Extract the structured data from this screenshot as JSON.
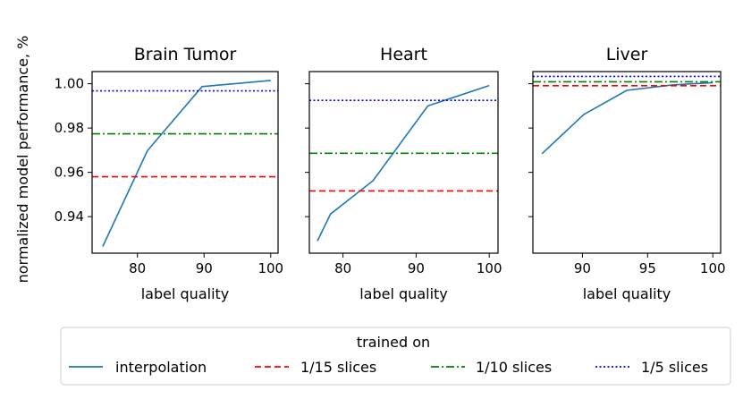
{
  "chart_data": [
    {
      "type": "line",
      "title": "Brain Tumor",
      "xlabel": "label quality",
      "ylabel": "normalized model performance, %",
      "xlim": [
        73.2,
        101.1
      ],
      "ylim": [
        0.9235,
        1.0055
      ],
      "xticks": [
        80,
        90,
        100
      ],
      "yticks": [
        0.94,
        0.96,
        0.98,
        1.0
      ],
      "ytick_labels": [
        "0.94",
        "0.96",
        "0.98",
        "1.00"
      ],
      "series": [
        {
          "name": "interpolation",
          "style": "solid",
          "color": "#1f77b4",
          "x": [
            74.8,
            81.5,
            89.7,
            100
          ],
          "y": [
            0.9265,
            0.9698,
            0.9987,
            1.0015
          ]
        },
        {
          "name": "1/15 slices",
          "style": "dashed",
          "color": "#ff0000",
          "value": 0.958
        },
        {
          "name": "1/10 slices",
          "style": "dashdot",
          "color": "#008000",
          "value": 0.9774
        },
        {
          "name": "1/5 slices",
          "style": "dotted",
          "color": "#0000ff",
          "value": 0.9968
        }
      ]
    },
    {
      "type": "line",
      "title": "Heart",
      "xlabel": "label quality",
      "xlim": [
        75.4,
        101.2
      ],
      "ylim": [
        0.9235,
        1.0055
      ],
      "xticks": [
        80,
        90,
        100
      ],
      "series": [
        {
          "name": "interpolation",
          "style": "solid",
          "color": "#1f77b4",
          "x": [
            76.5,
            78.3,
            84.1,
            91.6,
            100
          ],
          "y": [
            0.929,
            0.9412,
            0.9562,
            0.99,
            0.9992
          ]
        },
        {
          "name": "1/15 slices",
          "style": "dashed",
          "color": "#ff0000",
          "value": 0.9516
        },
        {
          "name": "1/10 slices",
          "style": "dashdot",
          "color": "#008000",
          "value": 0.9686
        },
        {
          "name": "1/5 slices",
          "style": "dotted",
          "color": "#0000ff",
          "value": 0.9925
        }
      ]
    },
    {
      "type": "line",
      "title": "Liver",
      "xlabel": "label quality",
      "xlim": [
        86.2,
        100.6
      ],
      "ylim": [
        0.9235,
        1.0055
      ],
      "xticks": [
        90,
        95,
        100
      ],
      "series": [
        {
          "name": "interpolation",
          "style": "solid",
          "color": "#1f77b4",
          "x": [
            86.9,
            90.1,
            93.4,
            96.9,
            100
          ],
          "y": [
            0.9684,
            0.9861,
            0.997,
            0.9995,
            1.0005
          ]
        },
        {
          "name": "1/15 slices",
          "style": "dashed",
          "color": "#ff0000",
          "value": 0.9991
        },
        {
          "name": "1/10 slices",
          "style": "dashdot",
          "color": "#008000",
          "value": 1.0009
        },
        {
          "name": "1/5 slices",
          "style": "dotted",
          "color": "#0000ff",
          "value": 1.0033
        }
      ]
    }
  ],
  "legend": {
    "title": "trained on",
    "placement": "bottom",
    "entries": [
      {
        "label": "interpolation",
        "style": "solid",
        "color": "#1f77b4"
      },
      {
        "label": "1/15 slices",
        "style": "dashed",
        "color": "#ff0000"
      },
      {
        "label": "1/10 slices",
        "style": "dashdot",
        "color": "#008000"
      },
      {
        "label": "1/5 slices",
        "style": "dotted",
        "color": "#0000ff"
      }
    ]
  }
}
